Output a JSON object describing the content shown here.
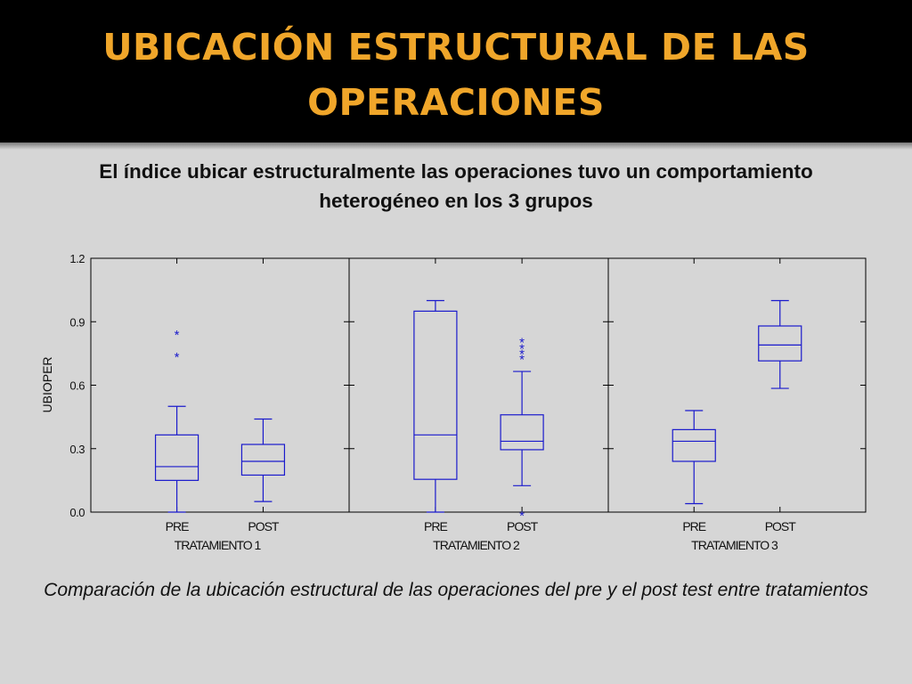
{
  "slide": {
    "title": "UBICACIÓN ESTRUCTURAL DE LAS OPERACIONES",
    "subtitle": "El índice ubicar estructuralmente las operaciones tuvo un comportamiento heterogéneo en los 3 grupos",
    "caption": "Comparación de la ubicación estructural de las operaciones del pre y el post test entre tratamientos"
  },
  "colors": {
    "header_bg": "#000000",
    "title": "#f0a62a",
    "box": "#1a1acc",
    "axes": "#000000",
    "background": "#d6d6d6"
  },
  "chart_data": {
    "type": "boxplot",
    "ylabel": "UBIOPER",
    "ylim": [
      0.0,
      1.2
    ],
    "yticks": [
      "0.0",
      "0.3",
      "0.6",
      "0.9",
      "1.2"
    ],
    "grid": false,
    "panels": [
      {
        "name": "TRATAMIENTO 1",
        "groups": [
          {
            "label": "PRE",
            "whisker_low": 0.0,
            "q1": 0.15,
            "median": 0.215,
            "q3": 0.365,
            "whisker_high": 0.5,
            "outliers": [
              0.75,
              0.855
            ]
          },
          {
            "label": "POST",
            "whisker_low": 0.05,
            "q1": 0.175,
            "median": 0.24,
            "q3": 0.32,
            "whisker_high": 0.44,
            "outliers": []
          }
        ]
      },
      {
        "name": "TRATAMIENTO 2",
        "groups": [
          {
            "label": "PRE",
            "whisker_low": 0.0,
            "q1": 0.155,
            "median": 0.365,
            "q3": 0.95,
            "whisker_high": 1.0,
            "outliers": []
          },
          {
            "label": "POST",
            "whisker_low": 0.125,
            "q1": 0.295,
            "median": 0.335,
            "q3": 0.46,
            "whisker_high": 0.665,
            "outliers": [
              0.0,
              0.74,
              0.765,
              0.79,
              0.82
            ]
          }
        ]
      },
      {
        "name": "TRATAMIENTO 3",
        "groups": [
          {
            "label": "PRE",
            "whisker_low": 0.04,
            "q1": 0.24,
            "median": 0.335,
            "q3": 0.39,
            "whisker_high": 0.48,
            "outliers": []
          },
          {
            "label": "POST",
            "whisker_low": 0.585,
            "q1": 0.715,
            "median": 0.79,
            "q3": 0.88,
            "whisker_high": 1.0,
            "outliers": []
          }
        ]
      }
    ]
  }
}
